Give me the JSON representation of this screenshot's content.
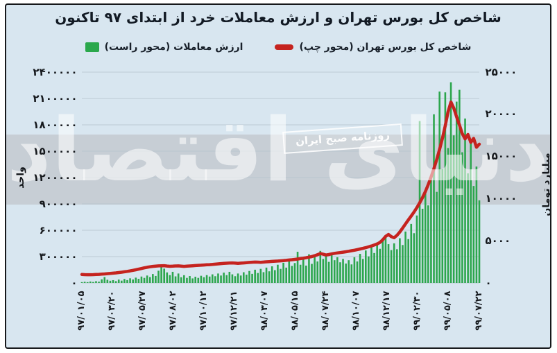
{
  "title": "شاخص کل بورس تهران و ارزش معاملات خرد از ابتدای ۹۷ تاکنون",
  "legend": [
    {
      "label": "ارزش معاملات (محور راست)",
      "color": "#2aa84c",
      "marker": "square"
    },
    {
      "label": "شاخص کل بورس تهران (محور چپ)",
      "color": "#c5231f",
      "marker": "line"
    }
  ],
  "watermark": {
    "main": "دنیای اقتصاد",
    "badge": "روزنامه صبح ایران"
  },
  "left_axis": {
    "title": "واحد",
    "labels": [
      "۲۴٠٠٠٠٠",
      "۲۱٠٠٠٠٠",
      "۱۸٠٠٠٠٠",
      "۱۵٠٠٠٠٠",
      "۱۲٠٠٠٠٠",
      "۹٠٠٠٠٠",
      "۶٠٠٠٠٠",
      "۳٠٠٠٠٠",
      "٠"
    ],
    "min": 0,
    "max": 2400000,
    "step": 300000
  },
  "right_axis": {
    "title": "میلیارد تومان",
    "labels": [
      "۲۵٠٠٠",
      "۲٠٠٠٠",
      "۱۵٠٠٠",
      "۱٠٠٠٠",
      "۵٠٠٠",
      "٠"
    ],
    "min": 0,
    "max": 25000,
    "step": 5000
  },
  "colors": {
    "background": "#d8e6f0",
    "band": "#c7ced5",
    "gridline": "#b7c3cd",
    "bar_green": "#2ca64d",
    "line_red": "#c5231f",
    "text_dark": "#15181c",
    "frame_border": "#16181b"
  },
  "chart_data": {
    "type": "combo",
    "title": "شاخص کل بورس تهران و ارزش معاملات خرد از ابتدای ۹۷ تاکنون",
    "x_tick_labels": [
      "۹۷/٠۱/٠۵",
      "۹۷/٠۳/۲٠",
      "۹۷/٠۵/۲۷",
      "۹۷/٠۸/٠۲",
      "۹۷/۱٠/۱۲",
      "۹۷/۱۲/۲۱",
      "۹۸/٠۳/٠۷",
      "۹۸/٠۵/۱۵",
      "۹۸/٠۷/۲۴",
      "۹۸/۱٠/٠۷",
      "۹۸/۱۲/۱۷",
      "۹۹/٠۲/۳٠",
      "۹۹/٠۵/٠۸",
      "۹۹/٠۷/۲۲"
    ],
    "left_axis_range": [
      0,
      2400000
    ],
    "right_axis_range": [
      0,
      25000
    ],
    "grid": true,
    "legend_position": "top",
    "series": [
      {
        "name": "ارزش معاملات (محور راست)",
        "type": "bar",
        "axis": "right",
        "unit": "میلیارد تومان",
        "color": "#2ca64d",
        "values": [
          90,
          140,
          85,
          170,
          115,
          210,
          150,
          430,
          700,
          380,
          260,
          330,
          215,
          400,
          275,
          470,
          340,
          550,
          410,
          630,
          490,
          760,
          600,
          880,
          700,
          1060,
          830,
          1450,
          2100,
          1700,
          1250,
          930,
          1320,
          780,
          1120,
          680,
          920,
          600,
          820,
          540,
          740,
          600,
          850,
          680,
          930,
          760,
          1020,
          800,
          1120,
          880,
          1220,
          930,
          1320,
          1020,
          800,
          1120,
          880,
          1270,
          980,
          1420,
          1080,
          1570,
          1180,
          1670,
          1280,
          1820,
          1380,
          1970,
          1520,
          2160,
          1670,
          2400,
          1820,
          2650,
          2020,
          2360,
          3700,
          2160,
          2900,
          2060,
          3400,
          2260,
          3100,
          2550,
          3800,
          2850,
          3200,
          2500,
          3450,
          2700,
          3050,
          2450,
          2850,
          2300,
          2700,
          2200,
          3050,
          2550,
          3450,
          2850,
          3850,
          3150,
          4300,
          3550,
          4800,
          4050,
          5200,
          5600,
          4600,
          3900,
          4700,
          4000,
          5300,
          4500,
          6100,
          5200,
          7000,
          5900,
          8000,
          19200,
          8800,
          10600,
          9200,
          12500,
          20000,
          10800,
          22700,
          13500,
          22600,
          16000,
          23800,
          17500,
          21500,
          22900,
          15500,
          19500,
          13000,
          16800,
          11500,
          13800,
          9800
        ]
      },
      {
        "name": "شاخص کل بورس تهران (محور چپ)",
        "type": "line",
        "axis": "left",
        "unit": "واحد",
        "color": "#c5231f",
        "values": [
          96000,
          95000,
          94300,
          94000,
          94800,
          96200,
          98000,
          100200,
          102800,
          105600,
          108500,
          111500,
          114800,
          118500,
          122500,
          127000,
          132000,
          137500,
          143500,
          150000,
          157000,
          164500,
          172000,
          178500,
          184000,
          188500,
          192000,
          194500,
          196000,
          196500,
          193000,
          189500,
          191000,
          193500,
          194500,
          191500,
          189000,
          191000,
          193500,
          196000,
          198500,
          200500,
          202500,
          204500,
          206500,
          208500,
          211000,
          214000,
          217000,
          220000,
          222500,
          225000,
          227000,
          228000,
          226000,
          223500,
          225500,
          228500,
          231000,
          233500,
          236000,
          238000,
          236500,
          235000,
          237500,
          240500,
          243500,
          245500,
          247500,
          249500,
          252000,
          254500,
          257500,
          261000,
          264500,
          268500,
          272500,
          277000,
          282000,
          287500,
          293500,
          300000,
          310000,
          322000,
          335000,
          327000,
          318500,
          324000,
          331000,
          337500,
          341500,
          345500,
          350500,
          355500,
          361000,
          367000,
          373000,
          379500,
          386500,
          394000,
          402000,
          411000,
          421000,
          432000,
          444000,
          462000,
          492000,
          530000,
          552000,
          527000,
          515000,
          542000,
          580000,
          625000,
          672000,
          718000,
          762000,
          808000,
          858000,
          912000,
          972000,
          1040000,
          1118000,
          1205000,
          1300000,
          1405000,
          1520000,
          1645000,
          1790000,
          1950000,
          2060000,
          1990000,
          1890000,
          1800000,
          1700000,
          1640000,
          1690000,
          1600000,
          1645000,
          1545000,
          1580000
        ]
      }
    ]
  }
}
